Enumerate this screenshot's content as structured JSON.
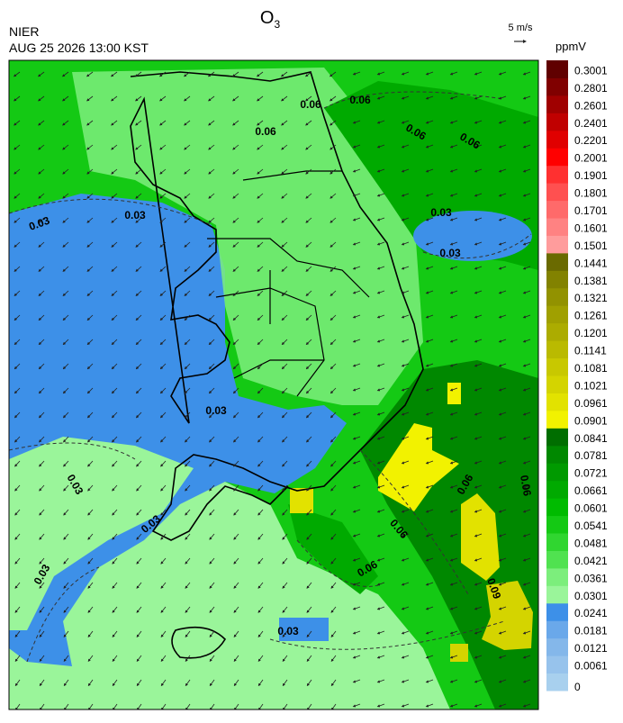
{
  "header": {
    "title": {
      "text": "O",
      "subscript": "3"
    },
    "agency": "NIER",
    "datetime": "AUG 25 2026 13:00 KST",
    "wind_scale": "5 m/s",
    "unit": "ppmV"
  },
  "colorbar": [
    {
      "value": 0,
      "color": "#a8d0ee"
    },
    {
      "value": 0.0061,
      "color": "#97c3ec"
    },
    {
      "value": 0.0121,
      "color": "#84b7ea"
    },
    {
      "value": 0.0181,
      "color": "#6aa8ea"
    },
    {
      "value": 0.0241,
      "color": "#3d90e8"
    },
    {
      "value": 0.0301,
      "color": "#9af59a"
    },
    {
      "value": 0.0361,
      "color": "#7cee7c"
    },
    {
      "value": 0.0421,
      "color": "#50e250"
    },
    {
      "value": 0.0481,
      "color": "#30d630"
    },
    {
      "value": 0.0541,
      "color": "#14c914"
    },
    {
      "value": 0.0601,
      "color": "#00bb00"
    },
    {
      "value": 0.0661,
      "color": "#00aa00"
    },
    {
      "value": 0.0721,
      "color": "#009a00"
    },
    {
      "value": 0.0781,
      "color": "#008800"
    },
    {
      "value": 0.0841,
      "color": "#006e00"
    },
    {
      "value": 0.0901,
      "color": "#f2f200"
    },
    {
      "value": 0.0961,
      "color": "#e2e200"
    },
    {
      "value": 0.1021,
      "color": "#d4d400"
    },
    {
      "value": 0.1081,
      "color": "#c8c800"
    },
    {
      "value": 0.1141,
      "color": "#baba00"
    },
    {
      "value": 0.1201,
      "color": "#acac00"
    },
    {
      "value": 0.1261,
      "color": "#a0a000"
    },
    {
      "value": 0.1321,
      "color": "#929200"
    },
    {
      "value": 0.1381,
      "color": "#828200"
    },
    {
      "value": 0.1441,
      "color": "#6a6a00"
    },
    {
      "value": 0.1501,
      "color": "#ff9c9c"
    },
    {
      "value": 0.1601,
      "color": "#ff8282"
    },
    {
      "value": 0.1701,
      "color": "#ff6a6a"
    },
    {
      "value": 0.1801,
      "color": "#ff5050"
    },
    {
      "value": 0.1901,
      "color": "#ff3030"
    },
    {
      "value": 0.2001,
      "color": "#ff0000"
    },
    {
      "value": 0.2201,
      "color": "#e00000"
    },
    {
      "value": 0.2401,
      "color": "#c00000"
    },
    {
      "value": 0.2601,
      "color": "#a00000"
    },
    {
      "value": 0.2801,
      "color": "#800000"
    },
    {
      "value": 0.3001,
      "color": "#600000"
    }
  ],
  "contour_labels": [
    "0.06",
    "0.06",
    "0.06",
    "0.06",
    "0.06",
    "0.03",
    "0.03",
    "0.03",
    "0.03",
    "0.03",
    "0.03",
    "0.03",
    "0.03",
    "0.06",
    "0.06",
    "0.09",
    "0.06",
    "0.06",
    "0.03"
  ]
}
